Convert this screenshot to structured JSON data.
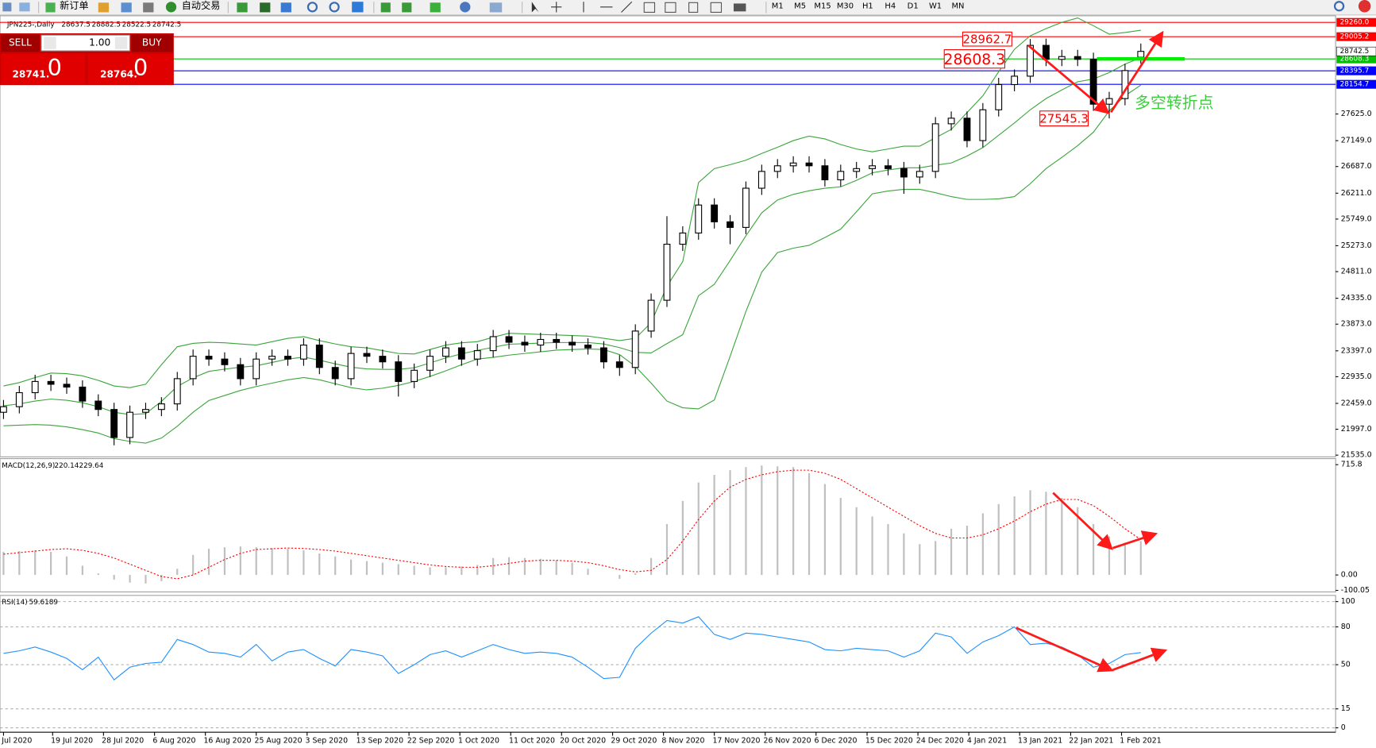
{
  "toolbar": {
    "new_order": "新订单",
    "auto_trade": "自动交易",
    "timeframes": [
      "M1",
      "M5",
      "M15",
      "M30",
      "H1",
      "H4",
      "D1",
      "W1",
      "MN"
    ]
  },
  "trade_panel": {
    "sell": "SELL",
    "buy": "BUY",
    "lot": "1.00",
    "sell_price": {
      "main": "28741.",
      "big": "0"
    },
    "buy_price": {
      "main": "28764.",
      "big": "0"
    }
  },
  "chart_data": [
    {
      "type": "candlestick",
      "title": "JPN225-,Daily",
      "note": "多空转折点",
      "open": [
        22300,
        22400,
        22650,
        22850,
        22800,
        22750,
        22500,
        22350,
        21850,
        22300,
        22350,
        22450,
        22900,
        23300,
        23250,
        23150,
        22900,
        23250,
        23300,
        23250,
        23500,
        23100,
        22900,
        23350,
        23300,
        23200,
        22850,
        23050,
        23300,
        23450,
        23250,
        23400,
        23650,
        23550,
        23500,
        23600,
        23550,
        23500,
        23450,
        23200,
        23100,
        23750,
        24300,
        25300,
        25500,
        26000,
        25700,
        25600,
        26300,
        26600,
        26700,
        26750,
        26700,
        26450,
        26600,
        26650,
        26700,
        26650,
        26500,
        26600,
        27450,
        27550,
        27150,
        27700,
        28150,
        28300,
        28850,
        28600,
        28650,
        28600,
        27800,
        27900,
        28637.5
      ],
      "high": [
        22520,
        22770,
        22970,
        22970,
        22920,
        22870,
        22620,
        22470,
        22420,
        22470,
        22570,
        23020,
        23420,
        23420,
        23370,
        23270,
        23370,
        23420,
        23420,
        23620,
        23620,
        23220,
        23470,
        23470,
        23420,
        23320,
        23170,
        23420,
        23570,
        23570,
        23520,
        23770,
        23770,
        23670,
        23720,
        23720,
        23670,
        23620,
        23570,
        23320,
        23870,
        24420,
        25800,
        25620,
        26120,
        26120,
        25820,
        26420,
        26720,
        26820,
        26870,
        26870,
        26820,
        26720,
        26770,
        26820,
        26820,
        26770,
        26720,
        27570,
        27670,
        27670,
        27820,
        28270,
        28420,
        28962.7,
        28970,
        28770,
        28770,
        28720,
        28020,
        28520,
        28882.5
      ],
      "low": [
        22180,
        22280,
        22530,
        22680,
        22630,
        22380,
        22230,
        21710,
        21730,
        22180,
        22230,
        22330,
        22780,
        23130,
        23030,
        22780,
        22780,
        23130,
        23130,
        23130,
        22980,
        22780,
        22780,
        23180,
        23080,
        22580,
        22730,
        22930,
        23180,
        23130,
        23130,
        23280,
        23430,
        23380,
        23380,
        23430,
        23380,
        23330,
        23080,
        22950,
        22980,
        23630,
        24180,
        25180,
        25380,
        25580,
        25300,
        25480,
        26180,
        26480,
        26580,
        26580,
        26330,
        26330,
        26480,
        26530,
        26530,
        26200,
        26380,
        26480,
        27330,
        27030,
        27030,
        27580,
        28030,
        28180,
        28480,
        28480,
        28480,
        27680,
        27545.3,
        27780,
        28522.5
      ],
      "close": [
        22400,
        22650,
        22850,
        22800,
        22750,
        22500,
        22350,
        21850,
        22300,
        22350,
        22450,
        22900,
        23300,
        23250,
        23150,
        22900,
        23250,
        23300,
        23250,
        23500,
        23100,
        22900,
        23350,
        23300,
        23200,
        22850,
        23050,
        23300,
        23450,
        23250,
        23400,
        23650,
        23550,
        23500,
        23600,
        23550,
        23500,
        23450,
        23200,
        23100,
        23750,
        24300,
        25300,
        25500,
        26000,
        25700,
        25600,
        26300,
        26600,
        26700,
        26750,
        26700,
        26450,
        26600,
        26650,
        26700,
        26650,
        26500,
        26600,
        27450,
        27550,
        27150,
        27700,
        28150,
        28300,
        28850,
        28600,
        28650,
        28600,
        27800,
        27900,
        28400,
        28742.5
      ],
      "series": [
        {
          "color": "#3aa53a",
          "values": [
            22770,
            22830,
            22920,
            23000,
            22990,
            22950,
            22870,
            22770,
            22740,
            22800,
            23150,
            23470,
            23530,
            23550,
            23540,
            23520,
            23500,
            23560,
            23620,
            23650,
            23580,
            23520,
            23470,
            23450,
            23400,
            23350,
            23340,
            23420,
            23500,
            23540,
            23560,
            23640,
            23710,
            23700,
            23690,
            23680,
            23670,
            23660,
            23620,
            23580,
            23620,
            23900,
            24550,
            24990,
            26400,
            26650,
            26720,
            26800,
            26920,
            27030,
            27150,
            27230,
            27180,
            27080,
            27000,
            26950,
            27000,
            27050,
            27050,
            27200,
            27350,
            27650,
            27950,
            28380,
            28780,
            29020,
            29150,
            29260,
            29340,
            29200,
            29050,
            29080,
            29120
          ]
        },
        {
          "color": "#3aa53a",
          "values": [
            22415,
            22450,
            22500,
            22535,
            22515,
            22470,
            22400,
            22300,
            22260,
            22275,
            22495,
            22760,
            22915,
            23030,
            23070,
            23105,
            23130,
            23190,
            23250,
            23285,
            23230,
            23165,
            23105,
            23075,
            23065,
            23065,
            23095,
            23180,
            23270,
            23345,
            23405,
            23460,
            23515,
            23525,
            23535,
            23545,
            23545,
            23545,
            23520,
            23455,
            23370,
            23360,
            23525,
            23685,
            24380,
            24585,
            25010,
            25450,
            25860,
            26090,
            26190,
            26255,
            26300,
            26325,
            26440,
            26575,
            26625,
            26665,
            26665,
            26710,
            26750,
            26875,
            27025,
            27245,
            27465,
            27700,
            27900,
            28055,
            28200,
            28250,
            28365,
            28515,
            28630
          ]
        },
        {
          "color": "#3aa53a",
          "values": [
            22060,
            22070,
            22080,
            22070,
            22040,
            21990,
            21930,
            21830,
            21780,
            21750,
            21840,
            22050,
            22300,
            22510,
            22600,
            22690,
            22760,
            22820,
            22880,
            22920,
            22880,
            22810,
            22740,
            22700,
            22730,
            22780,
            22850,
            22940,
            23040,
            23150,
            23250,
            23280,
            23320,
            23350,
            23380,
            23410,
            23420,
            23430,
            23420,
            23330,
            23120,
            22820,
            22500,
            22380,
            22360,
            22520,
            23300,
            24100,
            24800,
            25150,
            25230,
            25280,
            25420,
            25570,
            25880,
            26200,
            26250,
            26280,
            26280,
            26220,
            26150,
            26100,
            26100,
            26110,
            26150,
            26380,
            26650,
            26850,
            27060,
            27300,
            27680,
            27950,
            28140
          ]
        }
      ],
      "levels": [
        {
          "value": 29260,
          "label": "29260.0",
          "color": "#ff0000"
        },
        {
          "value": 29005.2,
          "color": "#ff0000"
        },
        {
          "value": 28608.3,
          "color": "#00c000"
        },
        {
          "value": 28395.7,
          "color": "#0000ff"
        },
        {
          "value": 28154.7,
          "color": "#0000ff"
        }
      ],
      "ylim": [
        21504,
        29378
      ],
      "yticks": [
        {
          "value": 21535,
          "label": "21535.0"
        },
        {
          "value": 21997,
          "label": "21997.0"
        },
        {
          "value": 22459,
          "label": "22459.0"
        },
        {
          "value": 22935,
          "label": "22935.0"
        },
        {
          "value": 23397,
          "label": "23397.0"
        },
        {
          "value": 23873,
          "label": "23873.0"
        },
        {
          "value": 24335,
          "label": "24335.0"
        },
        {
          "value": 24811,
          "label": "24811.0"
        },
        {
          "value": 25273,
          "label": "25273.0"
        },
        {
          "value": 25749,
          "label": "25749.0"
        },
        {
          "value": 26211,
          "label": "26211.0"
        },
        {
          "value": 26687,
          "label": "26687.0"
        },
        {
          "value": 27149,
          "label": "27149.0"
        },
        {
          "value": 27625,
          "label": "27625.0"
        }
      ],
      "xticks": [
        {
          "value": 0,
          "label": "Jul 2020"
        },
        {
          "value": 3.11,
          "label": "19 Jul 2020"
        },
        {
          "value": 6.33,
          "label": "28 Jul 2020"
        },
        {
          "value": 9.56,
          "label": "6 Aug 2020"
        },
        {
          "value": 12.78,
          "label": "16 Aug 2020"
        },
        {
          "value": 16,
          "label": "25 Aug 2020"
        },
        {
          "value": 19.22,
          "label": "3 Sep 2020"
        },
        {
          "value": 22.44,
          "label": "13 Sep 2020"
        },
        {
          "value": 25.67,
          "label": "22 Sep 2020"
        },
        {
          "value": 28.89,
          "label": "1 Oct 2020"
        },
        {
          "value": 32.11,
          "label": "11 Oct 2020"
        },
        {
          "value": 35.33,
          "label": "20 Oct 2020"
        },
        {
          "value": 38.56,
          "label": "29 Oct 2020"
        },
        {
          "value": 41.78,
          "label": "8 Nov 2020"
        },
        {
          "value": 45,
          "label": "17 Nov 2020"
        },
        {
          "value": 48.22,
          "label": "26 Nov 2020"
        },
        {
          "value": 51.44,
          "label": "6 Dec 2020"
        },
        {
          "value": 54.67,
          "label": "15 Dec 2020"
        },
        {
          "value": 57.89,
          "label": "24 Dec 2020"
        },
        {
          "value": 61.11,
          "label": "4 Jan 2021"
        },
        {
          "value": 64.33,
          "label": "13 Jan 2021"
        },
        {
          "value": 67.56,
          "label": "22 Jan 2021"
        },
        {
          "value": 70.78,
          "label": "1 Feb 2021"
        }
      ]
    },
    {
      "type": "macd",
      "title": "MACD(12,26,9)",
      "series": [
        {
          "type": "bar",
          "color": "#c0c0c0",
          "values": [
            150,
            155,
            160,
            150,
            120,
            60,
            10,
            -30,
            -50,
            -55,
            -40,
            40,
            130,
            170,
            180,
            185,
            180,
            175,
            170,
            160,
            140,
            120,
            100,
            90,
            80,
            70,
            60,
            50,
            50,
            55,
            65,
            110,
            115,
            110,
            105,
            95,
            80,
            40,
            0,
            -25,
            10,
            110,
            330,
            480,
            600,
            650,
            680,
            700,
            710,
            705,
            700,
            660,
            590,
            500,
            440,
            380,
            330,
            270,
            200,
            220,
            300,
            320,
            400,
            460,
            510,
            550,
            540,
            500,
            440,
            330,
            250,
            210,
            220.14
          ]
        },
        {
          "type": "line",
          "color": "#ff0000",
          "dashed": true,
          "values": [
            135,
            145,
            155,
            165,
            170,
            160,
            140,
            110,
            70,
            30,
            -10,
            -25,
            0,
            50,
            100,
            140,
            165,
            170,
            175,
            172,
            165,
            155,
            140,
            125,
            110,
            95,
            80,
            65,
            55,
            50,
            50,
            60,
            75,
            90,
            95,
            95,
            90,
            80,
            60,
            35,
            20,
            30,
            100,
            220,
            360,
            480,
            570,
            620,
            650,
            670,
            680,
            680,
            660,
            620,
            560,
            500,
            440,
            380,
            320,
            270,
            240,
            240,
            260,
            300,
            350,
            410,
            460,
            490,
            490,
            450,
            380,
            300,
            229.64
          ]
        }
      ],
      "ylim": [
        -110,
        755
      ],
      "yticks": [
        715.8,
        {
          "value": 0,
          "label": "0.00"
        },
        -100.05
      ]
    },
    {
      "type": "rsi",
      "title": "RSI(14)",
      "grid": true,
      "series": [
        {
          "color": "#1e90ff",
          "values": [
            59,
            61,
            64,
            60,
            55,
            46,
            56,
            38,
            48,
            51,
            52,
            70,
            66,
            60,
            59,
            56,
            66,
            53,
            60,
            62,
            55,
            49,
            62,
            60,
            57,
            43,
            50,
            58,
            61,
            56,
            61,
            66,
            62,
            59,
            60,
            59,
            56,
            48,
            39,
            40,
            63,
            75,
            85,
            83,
            88,
            74,
            70,
            75,
            74,
            72,
            70,
            68,
            62,
            61,
            63,
            62,
            61,
            56,
            61,
            75,
            72,
            59,
            68,
            73,
            80,
            66,
            67,
            64,
            58,
            48,
            51,
            58,
            59.6189
          ]
        }
      ],
      "ylim": [
        -3.5,
        104.9
      ],
      "yticks": [
        100,
        80,
        50,
        15,
        0
      ]
    }
  ]
}
